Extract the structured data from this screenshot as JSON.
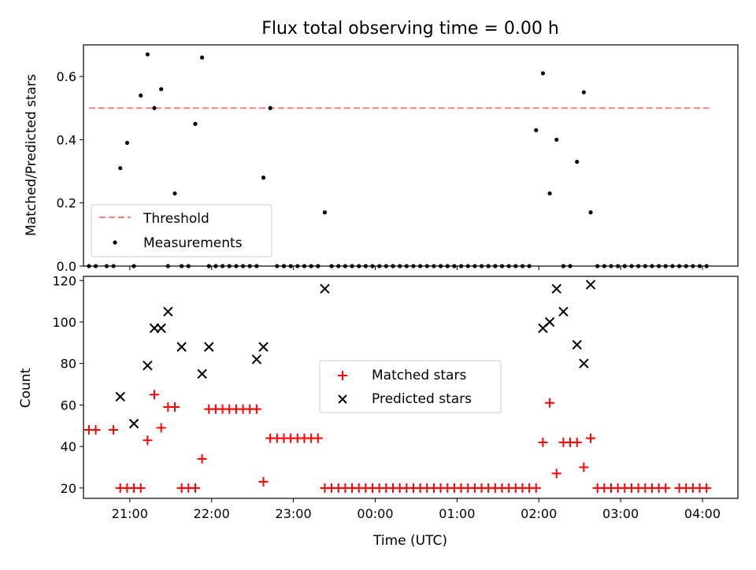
{
  "chart_data": [
    {
      "type": "scatter",
      "title": "Flux total observing time = 0.00 h",
      "xlabel": "",
      "ylabel": "Matched/Predicted stars",
      "xlim": [
        "20:26",
        "04:26"
      ],
      "ylim": [
        0,
        0.7
      ],
      "yticks": [
        "0.0",
        "0.2",
        "0.4",
        "0.6"
      ],
      "xticks": [
        "21:00",
        "22:00",
        "23:00",
        "00:00",
        "01:00",
        "02:00",
        "03:00",
        "04:00"
      ],
      "xtick_labels_visible": false,
      "legend": {
        "placement": "lower-left",
        "entries": [
          "Threshold",
          "Measurements"
        ]
      },
      "threshold": {
        "name": "Threshold",
        "value": 0.5,
        "x_start": "20:30",
        "x_end": "04:06",
        "color": "#ff7f7f"
      },
      "series": [
        {
          "name": "Measurements",
          "marker": "dot",
          "color": "#000000",
          "x": [
            "20:30",
            "20:35",
            "20:43",
            "20:48",
            "20:53",
            "20:58",
            "21:03",
            "21:08",
            "21:13",
            "21:18",
            "21:23",
            "21:28",
            "21:33",
            "21:38",
            "21:43",
            "21:48",
            "21:53",
            "21:58",
            "22:03",
            "22:08",
            "22:13",
            "22:18",
            "22:23",
            "22:28",
            "22:33",
            "22:38",
            "22:43",
            "22:48",
            "22:53",
            "22:58",
            "23:03",
            "23:08",
            "23:13",
            "23:18",
            "23:23",
            "23:28",
            "23:33",
            "23:38",
            "23:43",
            "23:48",
            "23:53",
            "23:58",
            "00:03",
            "00:08",
            "00:13",
            "00:18",
            "00:23",
            "00:28",
            "00:33",
            "00:38",
            "00:43",
            "00:48",
            "00:53",
            "00:58",
            "01:03",
            "01:08",
            "01:13",
            "01:18",
            "01:23",
            "01:28",
            "01:33",
            "01:38",
            "01:43",
            "01:48",
            "01:53",
            "01:58",
            "02:03",
            "02:08",
            "02:13",
            "02:18",
            "02:23",
            "02:28",
            "02:33",
            "02:38",
            "02:43",
            "02:48",
            "02:53",
            "02:58",
            "03:03",
            "03:08",
            "03:13",
            "03:18",
            "03:23",
            "03:28",
            "03:33",
            "03:38",
            "03:43",
            "03:48",
            "03:53",
            "03:58",
            "04:03"
          ],
          "y": [
            0,
            0,
            0,
            0,
            0.31,
            0.39,
            0,
            0.54,
            0.67,
            0.5,
            0.56,
            0,
            0.23,
            0,
            0,
            0.45,
            0.66,
            0,
            0,
            0,
            0,
            0,
            0,
            0,
            0,
            0.28,
            0.5,
            0,
            0,
            0,
            0,
            0,
            0,
            0,
            0.17,
            0,
            0,
            0,
            0,
            0,
            0,
            0,
            0,
            0,
            0,
            0,
            0,
            0,
            0,
            0,
            0,
            0,
            0,
            0,
            0,
            0,
            0,
            0,
            0,
            0,
            0,
            0,
            0,
            0,
            0,
            0.43,
            0.61,
            0.23,
            0.4,
            0,
            0,
            0.33,
            0.55,
            0.17,
            0,
            0,
            0,
            0,
            0,
            0,
            0,
            0,
            0,
            0,
            0,
            0,
            0,
            0,
            0,
            0,
            0
          ]
        }
      ]
    },
    {
      "type": "scatter",
      "title": "",
      "xlabel": "Time (UTC)",
      "ylabel": "Count",
      "xlim": [
        "20:26",
        "04:26"
      ],
      "ylim": [
        15,
        122
      ],
      "yticks": [
        "20",
        "40",
        "60",
        "80",
        "100",
        "120"
      ],
      "xticks": [
        "21:00",
        "22:00",
        "23:00",
        "00:00",
        "01:00",
        "02:00",
        "03:00",
        "04:00"
      ],
      "legend": {
        "placement": "center",
        "entries": [
          "Matched stars",
          "Predicted stars"
        ]
      },
      "series": [
        {
          "name": "Matched stars",
          "marker": "plus",
          "color": "#ff0000",
          "x": [
            "20:30",
            "20:35",
            "20:48",
            "20:53",
            "20:58",
            "21:03",
            "21:08",
            "21:13",
            "21:18",
            "21:23",
            "21:28",
            "21:33",
            "21:38",
            "21:43",
            "21:48",
            "21:53",
            "21:58",
            "22:03",
            "22:08",
            "22:13",
            "22:18",
            "22:23",
            "22:28",
            "22:33",
            "22:38",
            "22:43",
            "22:48",
            "22:53",
            "22:58",
            "23:03",
            "23:08",
            "23:13",
            "23:18",
            "23:23",
            "23:28",
            "23:33",
            "23:38",
            "23:43",
            "23:48",
            "23:53",
            "23:58",
            "00:03",
            "00:08",
            "00:13",
            "00:18",
            "00:23",
            "00:28",
            "00:33",
            "00:38",
            "00:43",
            "00:48",
            "00:53",
            "00:58",
            "01:03",
            "01:08",
            "01:13",
            "01:18",
            "01:23",
            "01:28",
            "01:33",
            "01:38",
            "01:43",
            "01:48",
            "01:53",
            "01:58",
            "02:03",
            "02:08",
            "02:13",
            "02:18",
            "02:23",
            "02:28",
            "02:33",
            "02:38",
            "02:43",
            "02:48",
            "02:53",
            "02:58",
            "03:03",
            "03:08",
            "03:13",
            "03:18",
            "03:23",
            "03:28",
            "03:33",
            "03:43",
            "03:48",
            "03:53",
            "03:58",
            "04:03"
          ],
          "y": [
            48,
            48,
            48,
            20,
            20,
            20,
            20,
            43,
            65,
            49,
            59,
            59,
            20,
            20,
            20,
            34,
            58,
            58,
            58,
            58,
            58,
            58,
            58,
            58,
            23,
            44,
            44,
            44,
            44,
            44,
            44,
            44,
            44,
            20,
            20,
            20,
            20,
            20,
            20,
            20,
            20,
            20,
            20,
            20,
            20,
            20,
            20,
            20,
            20,
            20,
            20,
            20,
            20,
            20,
            20,
            20,
            20,
            20,
            20,
            20,
            20,
            20,
            20,
            20,
            20,
            42,
            61,
            27,
            42,
            42,
            42,
            30,
            44,
            20,
            20,
            20,
            20,
            20,
            20,
            20,
            20,
            20,
            20,
            20,
            20,
            20,
            20,
            20,
            20
          ]
        },
        {
          "name": "Predicted stars",
          "marker": "x",
          "color": "#000000",
          "x": [
            "20:53",
            "21:03",
            "21:13",
            "21:18",
            "21:23",
            "21:28",
            "21:38",
            "21:53",
            "21:58",
            "22:33",
            "22:38",
            "23:23",
            "02:03",
            "02:08",
            "02:13",
            "02:18",
            "02:28",
            "02:33",
            "02:38"
          ],
          "y": [
            64,
            51,
            79,
            97,
            97,
            105,
            88,
            75,
            88,
            82,
            88,
            116,
            97,
            100,
            116,
            105,
            89,
            80,
            118
          ]
        }
      ]
    }
  ]
}
